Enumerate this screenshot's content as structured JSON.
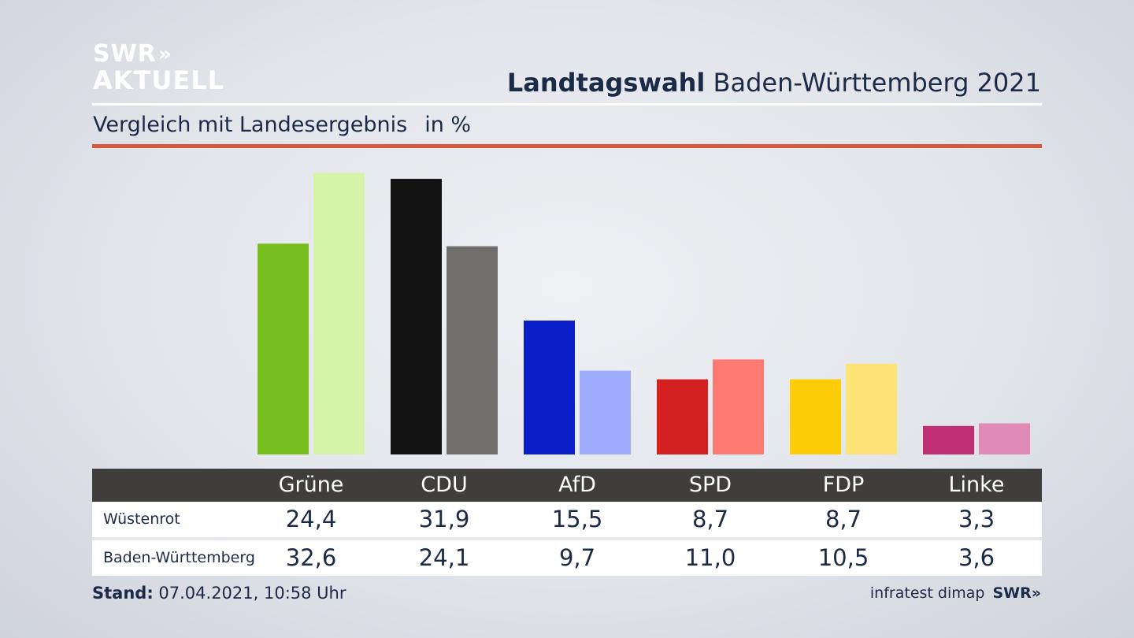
{
  "logo": {
    "line1": "SWR",
    "chevrons": "»",
    "line2": "AKTUELL"
  },
  "header": {
    "title_bold": "Landtagswahl",
    "title_rest": " Baden-Württemberg 2021"
  },
  "subheader": {
    "label": "Vergleich mit Landesergebnis",
    "unit": "in %"
  },
  "chart_data": {
    "type": "bar",
    "title": "Landtagswahl Baden-Württemberg 2021",
    "subtitle": "Vergleich mit Landesergebnis in %",
    "categories": [
      "Grüne",
      "CDU",
      "AfD",
      "SPD",
      "FDP",
      "Linke"
    ],
    "series": [
      {
        "name": "Wüstenrot",
        "values": [
          24.4,
          31.9,
          15.5,
          8.7,
          8.7,
          3.3
        ],
        "colors": [
          "#78bd1e",
          "#131313",
          "#0a1fc7",
          "#d42020",
          "#ffcc08",
          "#be2f74"
        ]
      },
      {
        "name": "Baden-Württemberg",
        "values": [
          32.6,
          24.1,
          9.7,
          11.0,
          10.5,
          3.6
        ],
        "colors": [
          "#d6f4a8",
          "#706f6d",
          "#9eacfe",
          "#fd7a72",
          "#fde275",
          "#e08ab8"
        ]
      }
    ],
    "value_labels": [
      [
        "24,4",
        "31,9",
        "15,5",
        "8,7",
        "8,7",
        "3,3"
      ],
      [
        "32,6",
        "24,1",
        "9,7",
        "11,0",
        "10,5",
        "3,6"
      ]
    ],
    "ylim": [
      0,
      33
    ],
    "grid": false,
    "legend": "table-below"
  },
  "footer": {
    "stand_label": "Stand:",
    "stand_value": " 07.04.2021, 10:58 Uhr",
    "source": "infratest dimap",
    "source_logo": "SWR»"
  }
}
